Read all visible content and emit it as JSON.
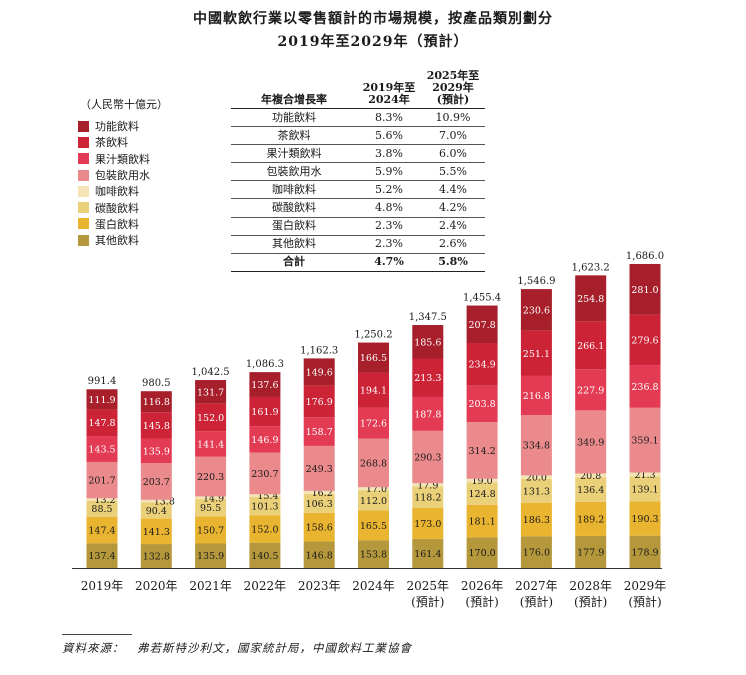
{
  "chart_data": {
    "type": "bar",
    "stacked": true,
    "title": "中國軟飲行業以零售額計的市場規模，按產品類別劃分",
    "subtitle": "2019年至2029年（預計）",
    "unit": "（人民幣十億元）",
    "categories": [
      "2019年",
      "2020年",
      "2021年",
      "2022年",
      "2023年",
      "2024年",
      "2025年",
      "2026年",
      "2027年",
      "2028年",
      "2029年"
    ],
    "category_notes": [
      "",
      "",
      "",
      "",
      "",
      "",
      "(預計)",
      "(預計)",
      "(預計)",
      "(預計)",
      "(預計)"
    ],
    "totals": [
      "991.4",
      "980.5",
      "1,042.5",
      "1,086.3",
      "1,162.3",
      "1,250.2",
      "1,347.5",
      "1,455.4",
      "1,546.9",
      "1,623.2",
      "1,686.0"
    ],
    "ylim": [
      0,
      1700
    ],
    "series": [
      {
        "name": "其他飲料",
        "color": "#b5983c",
        "label_color": "#1a1a1a",
        "values": [
          137.4,
          132.8,
          135.9,
          140.5,
          146.8,
          153.8,
          161.4,
          170.0,
          176.0,
          177.9,
          178.9
        ]
      },
      {
        "name": "蛋白飲料",
        "color": "#e9b42f",
        "label_color": "#1a1a1a",
        "values": [
          147.4,
          141.3,
          150.7,
          152.0,
          158.6,
          165.5,
          173.0,
          181.1,
          186.3,
          189.2,
          190.3
        ]
      },
      {
        "name": "碳酸飲料",
        "color": "#ebd07a",
        "label_color": "#1a1a1a",
        "values": [
          88.5,
          90.4,
          95.5,
          101.3,
          106.3,
          112.0,
          118.2,
          124.8,
          131.3,
          136.4,
          139.1
        ]
      },
      {
        "name": "咖啡飲料",
        "color": "#f4e3b4",
        "label_color": "#1a1a1a",
        "values": [
          13.2,
          13.8,
          14.9,
          15.4,
          16.2,
          17.0,
          17.9,
          19.0,
          20.0,
          20.8,
          21.3
        ]
      },
      {
        "name": "包裝飲用水",
        "color": "#ea8a8d",
        "label_color": "#1a1a1a",
        "values": [
          201.7,
          203.7,
          220.3,
          230.7,
          249.3,
          268.8,
          290.3,
          314.2,
          334.8,
          349.9,
          359.1
        ]
      },
      {
        "name": "果汁類飲料",
        "color": "#e23b53",
        "label_color": "#ffffff",
        "values": [
          143.5,
          135.9,
          141.4,
          146.9,
          158.7,
          172.6,
          187.8,
          203.8,
          216.8,
          227.9,
          236.8
        ]
      },
      {
        "name": "茶飲料",
        "color": "#cc2337",
        "label_color": "#ffffff",
        "values": [
          147.8,
          145.8,
          152.0,
          161.9,
          176.9,
          194.1,
          213.3,
          234.9,
          251.1,
          266.1,
          279.6
        ]
      },
      {
        "name": "功能飲料",
        "color": "#a61f2a",
        "label_color": "#ffffff",
        "values": [
          111.9,
          116.8,
          131.7,
          137.6,
          149.6,
          166.5,
          185.6,
          207.8,
          230.6,
          254.8,
          281.0
        ]
      }
    ],
    "legend_order": [
      "功能飲料",
      "茶飲料",
      "果汁類飲料",
      "包裝飲用水",
      "咖啡飲料",
      "碳酸飲料",
      "蛋白飲料",
      "其他飲料"
    ]
  },
  "cagr_table": {
    "header_label": "年複合增長率",
    "header_col1": "2019年至 2024年",
    "header_col2": "2025年至 2029年 (預計)",
    "rows": [
      {
        "name": "功能飲料",
        "c1": "8.3%",
        "c2": "10.9%"
      },
      {
        "name": "茶飲料",
        "c1": "5.6%",
        "c2": "7.0%"
      },
      {
        "name": "果汁類飲料",
        "c1": "3.8%",
        "c2": "6.0%"
      },
      {
        "name": "包裝飲用水",
        "c1": "5.9%",
        "c2": "5.5%"
      },
      {
        "name": "咖啡飲料",
        "c1": "5.2%",
        "c2": "4.4%"
      },
      {
        "name": "碳酸飲料",
        "c1": "4.8%",
        "c2": "4.2%"
      },
      {
        "name": "蛋白飲料",
        "c1": "2.3%",
        "c2": "2.4%"
      },
      {
        "name": "其他飲料",
        "c1": "2.3%",
        "c2": "2.6%"
      }
    ],
    "total": {
      "name": "合計",
      "c1": "4.7%",
      "c2": "5.8%"
    }
  },
  "source": "資料來源：　弗若斯特沙利文，國家統計局，中國飲料工業協會"
}
